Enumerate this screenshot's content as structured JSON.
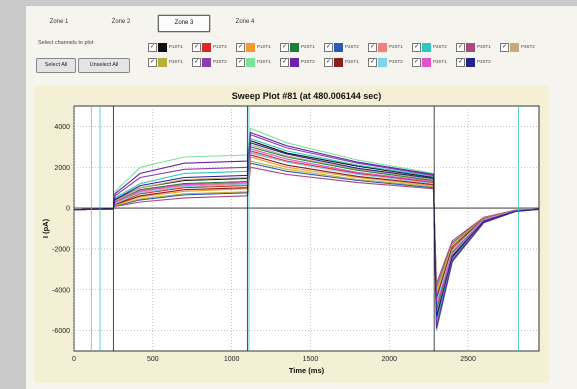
{
  "tabs": [
    {
      "label": "Zone 1",
      "active": false
    },
    {
      "label": "Zone 2",
      "active": false
    },
    {
      "label": "Zone 3",
      "active": true
    },
    {
      "label": "Zone 4",
      "active": false
    }
  ],
  "select_label": "Select channels to plot",
  "buttons": {
    "select_all": "Select All",
    "unselect_all": "Unselect All"
  },
  "channels": [
    {
      "label": "P1ST1",
      "color": "#111111"
    },
    {
      "label": "P1ST2",
      "color": "#d9282a"
    },
    {
      "label": "P1ST1",
      "color": "#f29a2e"
    },
    {
      "label": "P2ST1",
      "color": "#1a7f3a"
    },
    {
      "label": "P2ST2",
      "color": "#2d58b8"
    },
    {
      "label": "P2ST1",
      "color": "#f08080"
    },
    {
      "label": "P2ST2",
      "color": "#2fc6c1"
    },
    {
      "label": "P3ST1",
      "color": "#a84a7d"
    },
    {
      "label": "P3ST2",
      "color": "#c8a87c"
    },
    {
      "label": "P3ST1",
      "color": "#b8b03a"
    },
    {
      "label": "P3ST2",
      "color": "#8a3fb0"
    },
    {
      "label": "P3ST1",
      "color": "#7de29a"
    },
    {
      "label": "P3ST2",
      "color": "#6b22a8"
    },
    {
      "label": "P3ST1",
      "color": "#8a1f1f"
    },
    {
      "label": "P3ST2",
      "color": "#7fd3ea"
    },
    {
      "label": "P3ST1",
      "color": "#e053c9"
    },
    {
      "label": "P3ST2",
      "color": "#23238a"
    }
  ],
  "chart_data": {
    "type": "line",
    "title": "Sweep Plot #81 (at 480.006144 sec)",
    "xlabel": "Time (ms)",
    "ylabel": "I (pA)",
    "xlim": [
      0,
      2950
    ],
    "ylim": [
      -7000,
      5000
    ],
    "xticks": [
      0,
      500,
      1000,
      1500,
      2000,
      2500
    ],
    "yticks": [
      4000,
      2000,
      0,
      -2000,
      -4000,
      -6000
    ],
    "grid": true,
    "series_colors": [
      "#111111",
      "#d9282a",
      "#f29a2e",
      "#1a7f3a",
      "#2d58b8",
      "#f08080",
      "#2fc6c1",
      "#a84a7d",
      "#c8a87c",
      "#b8b03a",
      "#8a3fb0",
      "#7de29a",
      "#6b22a8",
      "#8a1f1f",
      "#7fd3ea",
      "#e053c9",
      "#23238a"
    ],
    "series": [
      {
        "x": [
          0,
          250,
          260,
          420,
          700,
          1100,
          1120,
          1350,
          1800,
          2280,
          2300,
          2400,
          2600,
          2800,
          2950
        ],
        "y": [
          -80,
          -40,
          400,
          1000,
          1350,
          1450,
          3300,
          2700,
          2050,
          1500,
          -5400,
          -2400,
          -650,
          -150,
          -60
        ]
      },
      {
        "x": [
          0,
          250,
          260,
          420,
          700,
          1100,
          1120,
          1350,
          1800,
          2280,
          2300,
          2400,
          2600,
          2800,
          2950
        ],
        "y": [
          -80,
          -40,
          200,
          700,
          1000,
          1100,
          2800,
          2300,
          1700,
          1250,
          -4500,
          -2000,
          -550,
          -120,
          -60
        ]
      },
      {
        "x": [
          0,
          250,
          260,
          420,
          700,
          1100,
          1120,
          1350,
          1800,
          2280,
          2300,
          2400,
          2600,
          2800,
          2950
        ],
        "y": [
          -80,
          -40,
          150,
          550,
          820,
          950,
          2500,
          2000,
          1500,
          1100,
          -4200,
          -1800,
          -500,
          -110,
          -60
        ]
      },
      {
        "x": [
          0,
          250,
          260,
          420,
          700,
          1100,
          1120,
          1350,
          1800,
          2280,
          2300,
          2400,
          2600,
          2800,
          2950
        ],
        "y": [
          -80,
          -40,
          300,
          900,
          1200,
          1300,
          3000,
          2500,
          1850,
          1350,
          -5000,
          -2200,
          -600,
          -140,
          -60
        ]
      },
      {
        "x": [
          0,
          250,
          260,
          420,
          700,
          1100,
          1120,
          1350,
          1800,
          2280,
          2300,
          2400,
          2600,
          2800,
          2950
        ],
        "y": [
          -80,
          -40,
          100,
          400,
          650,
          750,
          2200,
          1800,
          1350,
          1000,
          -3900,
          -1700,
          -480,
          -100,
          -60
        ]
      },
      {
        "x": [
          0,
          250,
          260,
          420,
          700,
          1100,
          1120,
          1350,
          1800,
          2280,
          2300,
          2400,
          2600,
          2800,
          2950
        ],
        "y": [
          -80,
          -40,
          250,
          800,
          1100,
          1200,
          2700,
          2250,
          1650,
          1200,
          -4700,
          -2100,
          -560,
          -130,
          -60
        ]
      },
      {
        "x": [
          0,
          250,
          260,
          420,
          700,
          1100,
          1120,
          1350,
          1800,
          2280,
          2300,
          2400,
          2600,
          2800,
          2950
        ],
        "y": [
          -80,
          -40,
          500,
          1200,
          1700,
          1800,
          3400,
          2800,
          2100,
          1550,
          -5600,
          -2500,
          -680,
          -160,
          -60
        ]
      },
      {
        "x": [
          0,
          250,
          260,
          420,
          700,
          1100,
          1120,
          1350,
          1800,
          2280,
          2300,
          2400,
          2600,
          2800,
          2950
        ],
        "y": [
          -80,
          -40,
          80,
          300,
          500,
          600,
          2000,
          1650,
          1250,
          950,
          -3700,
          -1600,
          -450,
          -100,
          -60
        ]
      },
      {
        "x": [
          0,
          250,
          260,
          420,
          700,
          1100,
          1120,
          1350,
          1800,
          2280,
          2300,
          2400,
          2600,
          2800,
          2950
        ],
        "y": [
          -80,
          -40,
          350,
          1000,
          1400,
          1500,
          3100,
          2550,
          1900,
          1400,
          -5200,
          -2300,
          -620,
          -150,
          -60
        ]
      },
      {
        "x": [
          0,
          250,
          260,
          420,
          700,
          1100,
          1120,
          1350,
          1800,
          2280,
          2300,
          2400,
          2600,
          2800,
          2950
        ],
        "y": [
          -80,
          -40,
          120,
          450,
          700,
          800,
          2300,
          1900,
          1400,
          1050,
          -4000,
          -1750,
          -490,
          -105,
          -60
        ]
      },
      {
        "x": [
          0,
          250,
          260,
          420,
          700,
          1100,
          1120,
          1350,
          1800,
          2280,
          2300,
          2400,
          2600,
          2800,
          2950
        ],
        "y": [
          -80,
          -40,
          600,
          1500,
          1900,
          2000,
          3600,
          2950,
          2200,
          1600,
          -5800,
          -2550,
          -700,
          -165,
          -60
        ]
      },
      {
        "x": [
          0,
          250,
          260,
          420,
          700,
          1100,
          1120,
          1350,
          1800,
          2280,
          2300,
          2400,
          2600,
          2800,
          2950
        ],
        "y": [
          -80,
          -40,
          800,
          2000,
          2500,
          2600,
          3900,
          3200,
          2350,
          1700,
          -6000,
          -2650,
          -720,
          -170,
          -60
        ]
      },
      {
        "x": [
          0,
          250,
          260,
          420,
          700,
          1100,
          1120,
          1350,
          1800,
          2280,
          2300,
          2400,
          2600,
          2800,
          2950
        ],
        "y": [
          -80,
          -40,
          700,
          1700,
          2200,
          2300,
          3700,
          3050,
          2250,
          1650,
          -5900,
          -2600,
          -710,
          -168,
          -60
        ]
      },
      {
        "x": [
          0,
          250,
          260,
          420,
          700,
          1100,
          1120,
          1350,
          1800,
          2280,
          2300,
          2400,
          2600,
          2800,
          2950
        ],
        "y": [
          -80,
          -40,
          180,
          600,
          900,
          1000,
          2600,
          2100,
          1550,
          1150,
          -4400,
          -1900,
          -520,
          -115,
          -60
        ]
      },
      {
        "x": [
          0,
          250,
          260,
          420,
          700,
          1100,
          1120,
          1350,
          1800,
          2280,
          2300,
          2400,
          2600,
          2800,
          2950
        ],
        "y": [
          -80,
          -40,
          220,
          750,
          1050,
          1150,
          2750,
          2250,
          1650,
          1200,
          -4600,
          -2050,
          -550,
          -125,
          -60
        ]
      },
      {
        "x": [
          0,
          250,
          260,
          420,
          700,
          1100,
          1120,
          1350,
          1800,
          2280,
          2300,
          2400,
          2600,
          2800,
          2950
        ],
        "y": [
          -80,
          -40,
          280,
          850,
          1150,
          1250,
          2900,
          2400,
          1750,
          1300,
          -4800,
          -2150,
          -580,
          -135,
          -60
        ]
      },
      {
        "x": [
          0,
          250,
          260,
          420,
          700,
          1100,
          1120,
          1350,
          1800,
          2280,
          2300,
          2400,
          2600,
          2800,
          2950
        ],
        "y": [
          -80,
          -40,
          420,
          1100,
          1500,
          1600,
          3200,
          2650,
          1950,
          1450,
          -5300,
          -2350,
          -640,
          -155,
          -60
        ]
      }
    ]
  }
}
